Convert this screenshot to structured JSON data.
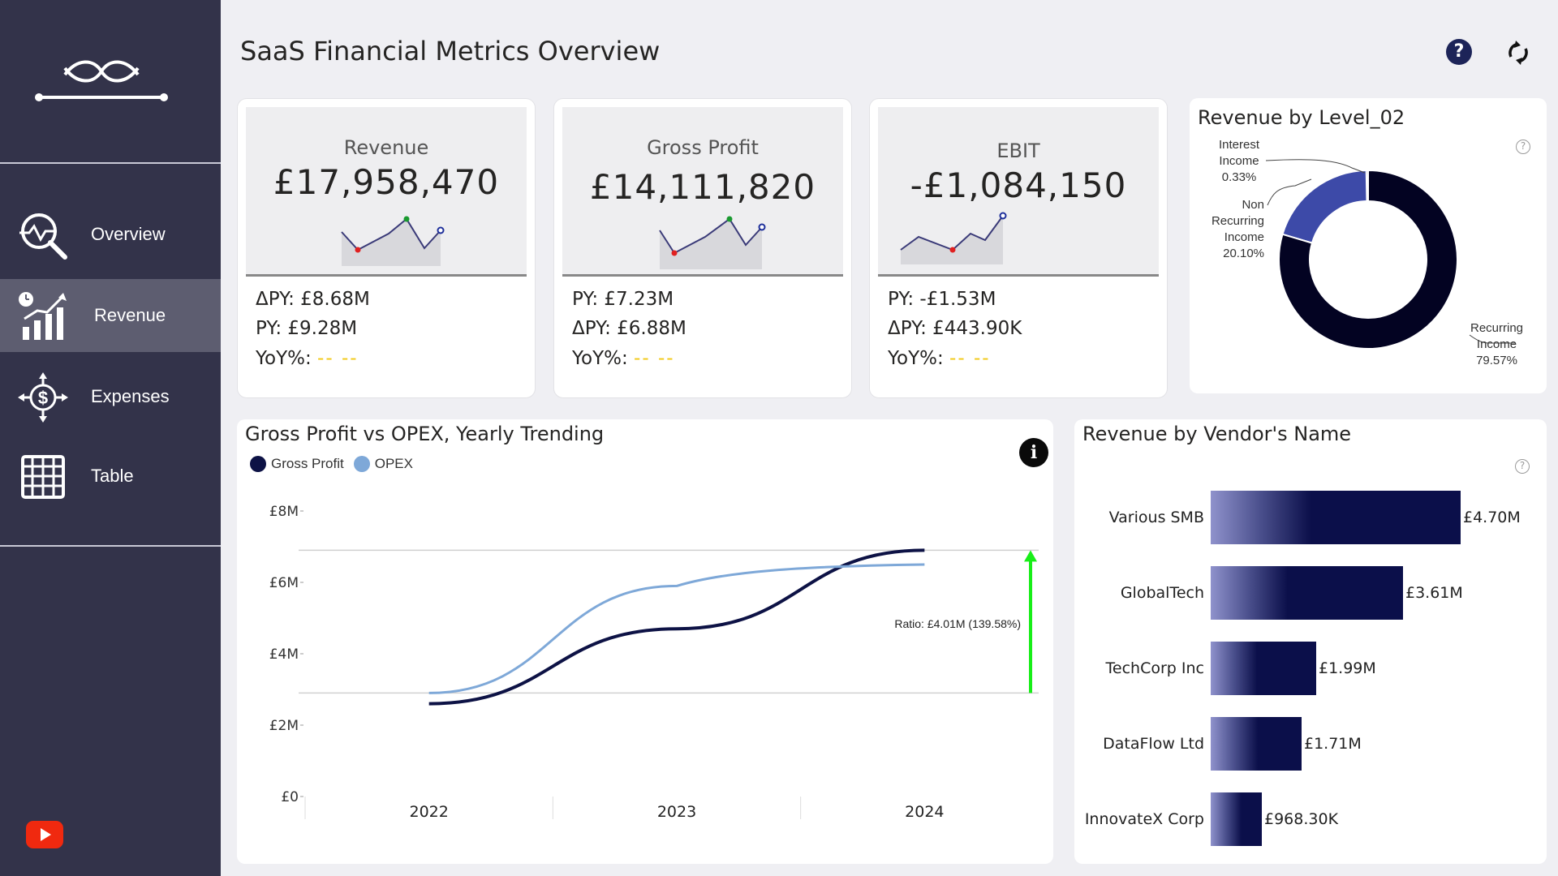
{
  "sidebar": {
    "logo_icon": "infinity-bridge-logo",
    "items": [
      {
        "label": "Overview",
        "icon": "overview-magnifier-icon",
        "active": false
      },
      {
        "label": "Revenue",
        "icon": "revenue-growth-icon",
        "active": true
      },
      {
        "label": "Expenses",
        "icon": "expenses-dollar-icon",
        "active": false
      },
      {
        "label": "Table",
        "icon": "table-grid-icon",
        "active": false
      }
    ],
    "footer_icon": "youtube-icon"
  },
  "header": {
    "title": "SaaS Financial Metrics Overview",
    "help_icon": "help-icon",
    "refresh_icon": "refresh-icon"
  },
  "kpis": [
    {
      "label": "Revenue",
      "value": "£17,958,470",
      "lines": [
        "ΔPY: £8.68M",
        "PY: £9.28M"
      ],
      "yoy_label": "YoY%:",
      "yoy_value": "-- --"
    },
    {
      "label": "Gross Profit",
      "value": "£14,111,820",
      "lines": [
        "PY: £7.23M",
        "ΔPY: £6.88M"
      ],
      "yoy_label": "YoY%:",
      "yoy_value": "-- --"
    },
    {
      "label": "EBIT",
      "value": "-£1,084,150",
      "lines": [
        "PY: -£1.53M",
        "ΔPY: £443.90K"
      ],
      "yoy_label": "YoY%:",
      "yoy_value": "-- --"
    }
  ],
  "donut": {
    "title": "Revenue by Level_02",
    "segments": [
      {
        "name": "Interest Income",
        "pct": "0.33%",
        "value": 0.33,
        "color": "#0c0c2c"
      },
      {
        "name": "Non Recurring Income",
        "pct": "20.10%",
        "value": 20.1,
        "color": "#3d4aa8"
      },
      {
        "name": "Recurring Income",
        "pct": "79.57%",
        "value": 79.57,
        "color": "#030322"
      }
    ],
    "labels": {
      "interest": [
        "Interest",
        "Income",
        "0.33%"
      ],
      "nonrecurring": [
        "Non",
        "Recurring",
        "Income",
        "20.10%"
      ],
      "recurring": [
        "Recurring",
        "Income",
        "79.57%"
      ]
    }
  },
  "trend": {
    "title": "Gross Profit vs OPEX, Yearly Trending",
    "legend": [
      {
        "name": "Gross Profit",
        "color": "#0d1245"
      },
      {
        "name": "OPEX",
        "color": "#7ea8d8"
      }
    ],
    "annotation": "Ratio: £4.01M (139.58%)",
    "info_icon": "info-icon"
  },
  "chart_data": [
    {
      "type": "line",
      "title": "Gross Profit vs OPEX, Yearly Trending",
      "x": [
        "2022",
        "2023",
        "2024"
      ],
      "series": [
        {
          "name": "Gross Profit",
          "values": [
            2.6,
            4.7,
            6.9
          ]
        },
        {
          "name": "OPEX",
          "values": [
            2.9,
            5.9,
            6.5
          ]
        }
      ],
      "ylim": [
        0,
        8
      ],
      "yticks": [
        "£0",
        "£2M",
        "£4M",
        "£6M",
        "£8M"
      ],
      "reference_lines": [
        2.9,
        6.9
      ]
    },
    {
      "type": "bar",
      "title": "Revenue by Vendor's Name",
      "categories": [
        "Various SMB",
        "GlobalTech",
        "TechCorp Inc",
        "DataFlow Ltd",
        "InnovateX Corp"
      ],
      "values": [
        4.7,
        3.61,
        1.99,
        1.71,
        0.9683
      ],
      "labels": [
        "£4.70M",
        "£3.61M",
        "£1.99M",
        "£1.71M",
        "£968.30K"
      ]
    }
  ],
  "vendors_title": "Revenue by Vendor's Name"
}
